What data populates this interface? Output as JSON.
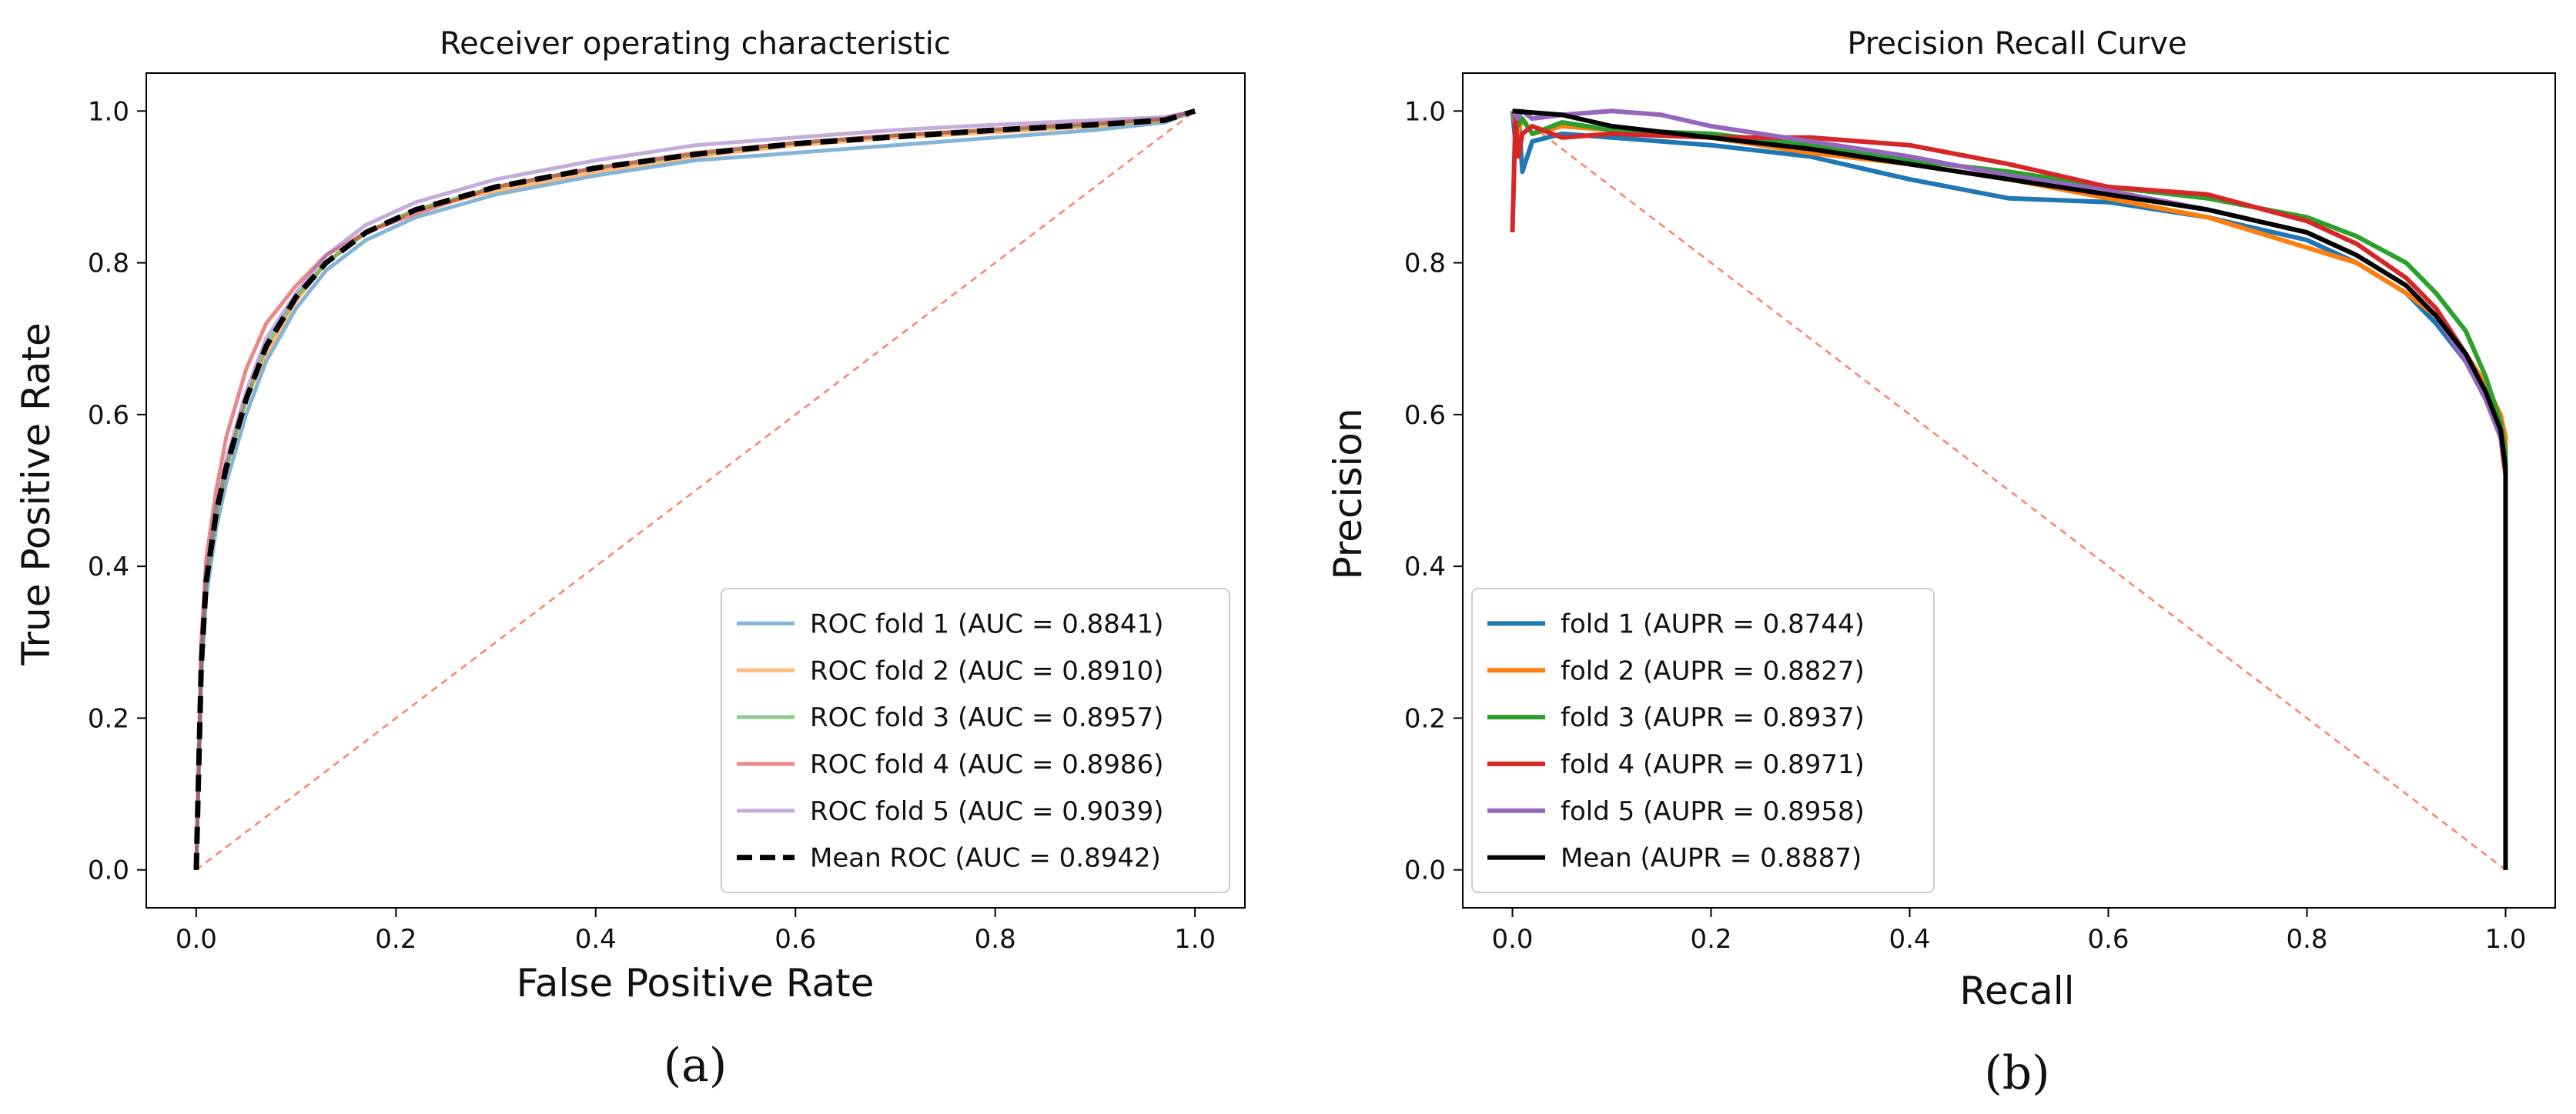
{
  "chart_data": [
    {
      "type": "line",
      "title": "Receiver operating characteristic",
      "xlabel": "False Positive Rate",
      "ylabel": "True Positive Rate",
      "caption": "(a)",
      "xlim": [
        -0.05,
        1.05
      ],
      "ylim": [
        -0.05,
        1.05
      ],
      "xticks": [
        "0.0",
        "0.2",
        "0.4",
        "0.6",
        "0.8",
        "1.0"
      ],
      "yticks": [
        "0.0",
        "0.2",
        "0.4",
        "0.6",
        "0.8",
        "1.0"
      ],
      "legend_position": "lower-right",
      "reference_line": {
        "x": [
          0,
          1
        ],
        "y": [
          0,
          1
        ],
        "color": "#ff7f6e",
        "style": "dashed"
      },
      "series": [
        {
          "name": "ROC fold 1 (AUC = 0.8841)",
          "color": "#1f77b4",
          "opacity": 0.55,
          "width": 5,
          "dash": "",
          "x": [
            0,
            0.005,
            0.01,
            0.02,
            0.03,
            0.05,
            0.07,
            0.1,
            0.13,
            0.17,
            0.22,
            0.3,
            0.4,
            0.5,
            0.6,
            0.7,
            0.8,
            0.9,
            0.97,
            1.0
          ],
          "y": [
            0,
            0.25,
            0.36,
            0.45,
            0.51,
            0.6,
            0.67,
            0.74,
            0.79,
            0.83,
            0.86,
            0.89,
            0.915,
            0.935,
            0.945,
            0.955,
            0.965,
            0.975,
            0.985,
            1.0
          ]
        },
        {
          "name": "ROC fold 2 (AUC = 0.8910)",
          "color": "#ff7f0e",
          "opacity": 0.55,
          "width": 5,
          "dash": "",
          "x": [
            0,
            0.005,
            0.01,
            0.02,
            0.03,
            0.05,
            0.07,
            0.1,
            0.13,
            0.17,
            0.22,
            0.3,
            0.4,
            0.5,
            0.6,
            0.7,
            0.8,
            0.9,
            0.97,
            1.0
          ],
          "y": [
            0,
            0.27,
            0.38,
            0.47,
            0.53,
            0.62,
            0.68,
            0.75,
            0.8,
            0.84,
            0.87,
            0.895,
            0.92,
            0.94,
            0.955,
            0.965,
            0.972,
            0.98,
            0.988,
            1.0
          ]
        },
        {
          "name": "ROC fold 3 (AUC = 0.8957)",
          "color": "#2ca02c",
          "opacity": 0.55,
          "width": 5,
          "dash": "",
          "x": [
            0,
            0.005,
            0.01,
            0.02,
            0.03,
            0.05,
            0.07,
            0.1,
            0.13,
            0.17,
            0.22,
            0.3,
            0.4,
            0.5,
            0.6,
            0.7,
            0.8,
            0.9,
            0.97,
            1.0
          ],
          "y": [
            0,
            0.27,
            0.38,
            0.47,
            0.53,
            0.62,
            0.69,
            0.755,
            0.8,
            0.84,
            0.87,
            0.9,
            0.925,
            0.943,
            0.958,
            0.968,
            0.975,
            0.982,
            0.99,
            1.0
          ]
        },
        {
          "name": "ROC fold 4 (AUC = 0.8986)",
          "color": "#d62728",
          "opacity": 0.55,
          "width": 5,
          "dash": "",
          "x": [
            0,
            0.005,
            0.01,
            0.02,
            0.03,
            0.05,
            0.07,
            0.1,
            0.13,
            0.17,
            0.22,
            0.3,
            0.4,
            0.5,
            0.6,
            0.7,
            0.8,
            0.9,
            0.97,
            1.0
          ],
          "y": [
            0,
            0.3,
            0.41,
            0.5,
            0.57,
            0.66,
            0.72,
            0.77,
            0.81,
            0.84,
            0.865,
            0.9,
            0.925,
            0.945,
            0.958,
            0.968,
            0.976,
            0.984,
            0.99,
            1.0
          ]
        },
        {
          "name": "ROC fold 5 (AUC = 0.9039)",
          "color": "#9467bd",
          "opacity": 0.55,
          "width": 5,
          "dash": "",
          "x": [
            0,
            0.005,
            0.01,
            0.02,
            0.03,
            0.05,
            0.07,
            0.1,
            0.13,
            0.17,
            0.22,
            0.3,
            0.4,
            0.5,
            0.6,
            0.7,
            0.8,
            0.9,
            0.97,
            1.0
          ],
          "y": [
            0,
            0.28,
            0.39,
            0.48,
            0.54,
            0.63,
            0.7,
            0.76,
            0.81,
            0.85,
            0.88,
            0.91,
            0.935,
            0.955,
            0.965,
            0.975,
            0.982,
            0.988,
            0.992,
            1.0
          ]
        },
        {
          "name": "Mean ROC (AUC = 0.8942)",
          "color": "#000000",
          "opacity": 1,
          "width": 7,
          "dash": "22,12",
          "x": [
            0,
            0.005,
            0.01,
            0.02,
            0.03,
            0.05,
            0.07,
            0.1,
            0.13,
            0.17,
            0.22,
            0.3,
            0.4,
            0.5,
            0.6,
            0.7,
            0.8,
            0.9,
            0.97,
            1.0
          ],
          "y": [
            0,
            0.27,
            0.38,
            0.47,
            0.53,
            0.62,
            0.69,
            0.755,
            0.8,
            0.84,
            0.87,
            0.9,
            0.925,
            0.943,
            0.957,
            0.966,
            0.975,
            0.982,
            0.988,
            1.0
          ]
        }
      ]
    },
    {
      "type": "line",
      "title": "Precision Recall Curve",
      "xlabel": "Recall",
      "ylabel": "Precision",
      "caption": "(b)",
      "xlim": [
        -0.05,
        1.05
      ],
      "ylim": [
        -0.05,
        1.05
      ],
      "xticks": [
        "0.0",
        "0.2",
        "0.4",
        "0.6",
        "0.8",
        "1.0"
      ],
      "yticks": [
        "0.0",
        "0.2",
        "0.4",
        "0.6",
        "0.8",
        "1.0"
      ],
      "legend_position": "lower-left",
      "reference_line": {
        "x": [
          0,
          1
        ],
        "y": [
          1,
          0
        ],
        "color": "#ff7f6e",
        "style": "dashed"
      },
      "series": [
        {
          "name": "fold 1 (AUPR = 0.8744)",
          "color": "#1f77b4",
          "opacity": 1,
          "width": 6,
          "dash": "",
          "x": [
            0,
            0.003,
            0.006,
            0.01,
            0.02,
            0.05,
            0.1,
            0.2,
            0.3,
            0.4,
            0.5,
            0.6,
            0.7,
            0.8,
            0.85,
            0.9,
            0.93,
            0.96,
            0.98,
            0.995,
            1.0,
            1.0
          ],
          "y": [
            1.0,
            0.96,
            1.0,
            0.92,
            0.96,
            0.97,
            0.965,
            0.955,
            0.94,
            0.91,
            0.885,
            0.88,
            0.86,
            0.83,
            0.8,
            0.76,
            0.72,
            0.67,
            0.62,
            0.58,
            0.55,
            0.0
          ]
        },
        {
          "name": "fold 2 (AUPR = 0.8827)",
          "color": "#ff7f0e",
          "opacity": 1,
          "width": 6,
          "dash": "",
          "x": [
            0,
            0.005,
            0.01,
            0.02,
            0.05,
            0.1,
            0.2,
            0.3,
            0.4,
            0.5,
            0.6,
            0.7,
            0.8,
            0.85,
            0.9,
            0.93,
            0.96,
            0.98,
            0.995,
            1.0,
            1.0
          ],
          "y": [
            1.0,
            0.97,
            0.99,
            0.97,
            0.98,
            0.975,
            0.965,
            0.945,
            0.93,
            0.91,
            0.885,
            0.86,
            0.82,
            0.8,
            0.76,
            0.73,
            0.68,
            0.64,
            0.6,
            0.57,
            0.0
          ]
        },
        {
          "name": "fold 3 (AUPR = 0.8937)",
          "color": "#2ca02c",
          "opacity": 1,
          "width": 6,
          "dash": "",
          "x": [
            0,
            0.005,
            0.01,
            0.02,
            0.05,
            0.1,
            0.2,
            0.3,
            0.4,
            0.5,
            0.6,
            0.7,
            0.8,
            0.85,
            0.9,
            0.93,
            0.96,
            0.98,
            0.995,
            1.0,
            1.0
          ],
          "y": [
            1.0,
            0.98,
            0.99,
            0.97,
            0.985,
            0.975,
            0.97,
            0.955,
            0.935,
            0.92,
            0.9,
            0.885,
            0.86,
            0.835,
            0.8,
            0.76,
            0.71,
            0.65,
            0.59,
            0.55,
            0.0
          ]
        },
        {
          "name": "fold 4 (AUPR = 0.8971)",
          "color": "#d62728",
          "opacity": 1,
          "width": 6,
          "dash": "",
          "x": [
            0,
            0.003,
            0.006,
            0.01,
            0.02,
            0.05,
            0.1,
            0.2,
            0.3,
            0.4,
            0.5,
            0.6,
            0.7,
            0.8,
            0.85,
            0.9,
            0.93,
            0.96,
            0.98,
            0.995,
            1.0,
            1.0
          ],
          "y": [
            0.84,
            0.99,
            0.94,
            0.97,
            0.98,
            0.965,
            0.97,
            0.965,
            0.965,
            0.955,
            0.93,
            0.9,
            0.89,
            0.855,
            0.825,
            0.78,
            0.74,
            0.68,
            0.63,
            0.57,
            0.52,
            0.0
          ]
        },
        {
          "name": "fold 5 (AUPR = 0.8958)",
          "color": "#9467bd",
          "opacity": 1,
          "width": 6,
          "dash": "",
          "x": [
            0,
            0.005,
            0.01,
            0.02,
            0.05,
            0.1,
            0.15,
            0.2,
            0.3,
            0.4,
            0.5,
            0.6,
            0.7,
            0.8,
            0.85,
            0.9,
            0.93,
            0.96,
            0.98,
            0.995,
            1.0,
            1.0
          ],
          "y": [
            1.0,
            0.99,
            1.0,
            0.99,
            0.995,
            1.0,
            0.995,
            0.98,
            0.96,
            0.94,
            0.915,
            0.895,
            0.87,
            0.84,
            0.81,
            0.77,
            0.73,
            0.67,
            0.62,
            0.57,
            0.53,
            0.0
          ]
        },
        {
          "name": "Mean (AUPR = 0.8887)",
          "color": "#000000",
          "opacity": 1,
          "width": 6,
          "dash": "",
          "x": [
            0,
            0.05,
            0.1,
            0.2,
            0.3,
            0.4,
            0.5,
            0.6,
            0.7,
            0.8,
            0.85,
            0.9,
            0.93,
            0.96,
            0.98,
            0.995,
            1.0,
            1.0
          ],
          "y": [
            1.0,
            0.995,
            0.98,
            0.965,
            0.95,
            0.93,
            0.91,
            0.89,
            0.87,
            0.84,
            0.81,
            0.77,
            0.73,
            0.68,
            0.63,
            0.58,
            0.53,
            0.0
          ]
        }
      ]
    }
  ]
}
